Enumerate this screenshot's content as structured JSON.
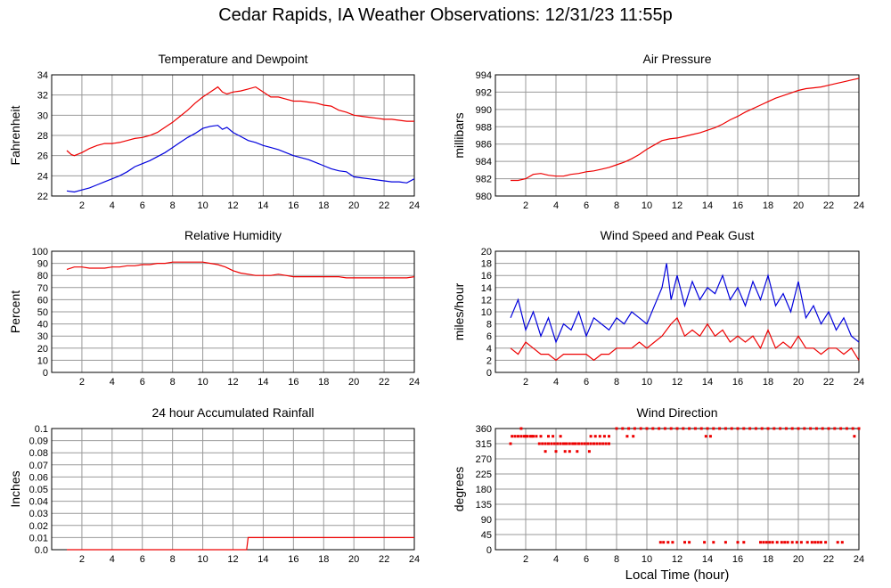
{
  "page": {
    "title": "Cedar Rapids, IA Weather Observations: 12/31/23 11:55p",
    "xlabel": "Local Time (hour)"
  },
  "colors": {
    "red": "#ee0000",
    "blue": "#0000dd",
    "grid": "#999999"
  },
  "chart_data": [
    {
      "id": "temp",
      "type": "line",
      "title": "Temperature and Dewpoint",
      "ylabel": "Fahrenheit",
      "xlim": [
        0,
        24
      ],
      "ylim": [
        22,
        34
      ],
      "xticks": [
        2,
        4,
        6,
        8,
        10,
        12,
        14,
        16,
        18,
        20,
        22,
        24
      ],
      "yticks": [
        22,
        24,
        26,
        28,
        30,
        32,
        34
      ],
      "grid": true,
      "series": [
        {
          "color": "red",
          "x": [
            1,
            1.3,
            1.5,
            2,
            2.5,
            3,
            3.5,
            4,
            4.5,
            5,
            5.5,
            6,
            6.5,
            7,
            7.5,
            8,
            8.5,
            9,
            9.5,
            10,
            10.5,
            11,
            11.3,
            11.6,
            12,
            12.5,
            13,
            13.5,
            14,
            14.5,
            15,
            15.5,
            16,
            16.5,
            17,
            17.5,
            18,
            18.5,
            19,
            19.5,
            20,
            20.5,
            21,
            21.5,
            22,
            22.5,
            23,
            23.5,
            24
          ],
          "y": [
            26.5,
            26.1,
            26.0,
            26.3,
            26.7,
            27.0,
            27.2,
            27.2,
            27.3,
            27.5,
            27.7,
            27.8,
            28.0,
            28.3,
            28.8,
            29.3,
            29.9,
            30.5,
            31.2,
            31.8,
            32.3,
            32.8,
            32.3,
            32.1,
            32.3,
            32.4,
            32.6,
            32.8,
            32.3,
            31.8,
            31.8,
            31.6,
            31.4,
            31.4,
            31.3,
            31.2,
            31.0,
            30.9,
            30.5,
            30.3,
            30.0,
            29.9,
            29.8,
            29.7,
            29.6,
            29.6,
            29.5,
            29.4,
            29.4
          ]
        },
        {
          "color": "blue",
          "x": [
            1,
            1.5,
            2,
            2.5,
            3,
            3.5,
            4,
            4.5,
            5,
            5.5,
            6,
            6.5,
            7,
            7.5,
            8,
            8.5,
            9,
            9.5,
            10,
            10.5,
            11,
            11.3,
            11.6,
            12,
            12.5,
            13,
            13.5,
            14,
            14.5,
            15,
            15.5,
            16,
            16.5,
            17,
            17.5,
            18,
            18.5,
            19,
            19.5,
            20,
            20.5,
            21,
            21.5,
            22,
            22.5,
            23,
            23.5,
            24
          ],
          "y": [
            22.5,
            22.4,
            22.6,
            22.8,
            23.1,
            23.4,
            23.7,
            24.0,
            24.4,
            24.9,
            25.2,
            25.5,
            25.9,
            26.3,
            26.8,
            27.3,
            27.8,
            28.2,
            28.7,
            28.9,
            29.0,
            28.6,
            28.8,
            28.3,
            27.9,
            27.5,
            27.3,
            27.0,
            26.8,
            26.6,
            26.3,
            26.0,
            25.8,
            25.6,
            25.3,
            25.0,
            24.7,
            24.5,
            24.4,
            23.9,
            23.8,
            23.7,
            23.6,
            23.5,
            23.4,
            23.4,
            23.3,
            23.7
          ]
        }
      ]
    },
    {
      "id": "pressure",
      "type": "line",
      "title": "Air Pressure",
      "ylabel": "millibars",
      "xlim": [
        0,
        24
      ],
      "ylim": [
        980,
        994
      ],
      "xticks": [
        2,
        4,
        6,
        8,
        10,
        12,
        14,
        16,
        18,
        20,
        22,
        24
      ],
      "yticks": [
        980,
        982,
        984,
        986,
        988,
        990,
        992,
        994
      ],
      "grid": true,
      "series": [
        {
          "color": "red",
          "x": [
            1,
            1.5,
            2,
            2.5,
            3,
            3.5,
            4,
            4.5,
            5,
            5.5,
            6,
            6.5,
            7,
            7.5,
            8,
            8.5,
            9,
            9.5,
            10,
            10.5,
            11,
            11.5,
            12,
            12.5,
            13,
            13.5,
            14,
            14.5,
            15,
            15.5,
            16,
            16.5,
            17,
            17.5,
            18,
            18.5,
            19,
            19.5,
            20,
            20.5,
            21,
            21.5,
            22,
            22.5,
            23,
            23.5,
            24
          ],
          "y": [
            981.8,
            981.8,
            982.0,
            982.5,
            982.6,
            982.4,
            982.3,
            982.3,
            982.5,
            982.6,
            982.8,
            982.9,
            983.1,
            983.3,
            983.6,
            983.9,
            984.3,
            984.8,
            985.4,
            985.9,
            986.4,
            986.6,
            986.7,
            986.9,
            987.1,
            987.3,
            987.6,
            987.9,
            988.3,
            988.8,
            989.2,
            989.7,
            990.1,
            990.5,
            990.9,
            991.3,
            991.6,
            991.9,
            992.2,
            992.4,
            992.5,
            992.6,
            992.8,
            993.0,
            993.2,
            993.4,
            993.6
          ]
        }
      ]
    },
    {
      "id": "humidity",
      "type": "line",
      "title": "Relative Humidity",
      "ylabel": "Percent",
      "xlim": [
        0,
        24
      ],
      "ylim": [
        0,
        100
      ],
      "xticks": [
        2,
        4,
        6,
        8,
        10,
        12,
        14,
        16,
        18,
        20,
        22,
        24
      ],
      "yticks": [
        0,
        10,
        20,
        30,
        40,
        50,
        60,
        70,
        80,
        90,
        100
      ],
      "grid": true,
      "series": [
        {
          "color": "red",
          "x": [
            1,
            1.5,
            2,
            2.5,
            3,
            3.5,
            4,
            4.5,
            5,
            5.5,
            6,
            6.5,
            7,
            7.5,
            8,
            8.5,
            9,
            9.5,
            10,
            10.5,
            11,
            11.5,
            12,
            12.5,
            13,
            13.5,
            14,
            14.5,
            15,
            15.5,
            16,
            16.5,
            17,
            17.5,
            18,
            18.5,
            19,
            19.5,
            20,
            20.5,
            21,
            21.5,
            22,
            22.5,
            23,
            23.5,
            24
          ],
          "y": [
            85,
            87,
            87,
            86,
            86,
            86,
            87,
            87,
            88,
            88,
            89,
            89,
            90,
            90,
            91,
            91,
            91,
            91,
            91,
            90,
            89,
            87,
            84,
            82,
            81,
            80,
            80,
            80,
            81,
            80,
            79,
            79,
            79,
            79,
            79,
            79,
            79,
            78,
            78,
            78,
            78,
            78,
            78,
            78,
            78,
            78,
            79
          ]
        }
      ]
    },
    {
      "id": "wind",
      "type": "line",
      "title": "Wind Speed and Peak Gust",
      "ylabel": "miles/hour",
      "xlim": [
        0,
        24
      ],
      "ylim": [
        0,
        20
      ],
      "xticks": [
        2,
        4,
        6,
        8,
        10,
        12,
        14,
        16,
        18,
        20,
        22,
        24
      ],
      "yticks": [
        0,
        2,
        4,
        6,
        8,
        10,
        12,
        14,
        16,
        18,
        20
      ],
      "grid": true,
      "series": [
        {
          "color": "blue",
          "x": [
            1,
            1.5,
            2,
            2.5,
            3,
            3.5,
            4,
            4.5,
            5,
            5.5,
            6,
            6.5,
            7,
            7.5,
            8,
            8.5,
            9,
            9.5,
            10,
            10.5,
            11,
            11.3,
            11.6,
            12,
            12.5,
            13,
            13.5,
            14,
            14.5,
            15,
            15.5,
            16,
            16.5,
            17,
            17.5,
            18,
            18.5,
            19,
            19.5,
            20,
            20.5,
            21,
            21.5,
            22,
            22.5,
            23,
            23.5,
            24
          ],
          "y": [
            9,
            12,
            7,
            10,
            6,
            9,
            5,
            8,
            7,
            10,
            6,
            9,
            8,
            7,
            9,
            8,
            10,
            9,
            8,
            11,
            14,
            18,
            12,
            16,
            11,
            15,
            12,
            14,
            13,
            16,
            12,
            14,
            11,
            15,
            12,
            16,
            11,
            13,
            10,
            15,
            9,
            11,
            8,
            10,
            7,
            9,
            6,
            5
          ]
        },
        {
          "color": "red",
          "x": [
            1,
            1.5,
            2,
            2.5,
            3,
            3.5,
            4,
            4.5,
            5,
            5.5,
            6,
            6.5,
            7,
            7.5,
            8,
            8.5,
            9,
            9.5,
            10,
            10.5,
            11,
            11.3,
            11.6,
            12,
            12.5,
            13,
            13.5,
            14,
            14.5,
            15,
            15.5,
            16,
            16.5,
            17,
            17.5,
            18,
            18.5,
            19,
            19.5,
            20,
            20.5,
            21,
            21.5,
            22,
            22.5,
            23,
            23.5,
            24
          ],
          "y": [
            4,
            3,
            5,
            4,
            3,
            3,
            2,
            3,
            3,
            3,
            3,
            2,
            3,
            3,
            4,
            4,
            4,
            5,
            4,
            5,
            6,
            7,
            8,
            9,
            6,
            7,
            6,
            8,
            6,
            7,
            5,
            6,
            5,
            6,
            4,
            7,
            4,
            5,
            4,
            6,
            4,
            4,
            3,
            4,
            4,
            3,
            4,
            2
          ]
        }
      ]
    },
    {
      "id": "rain",
      "type": "line",
      "title": "24 hour Accumulated Rainfall",
      "ylabel": "Inches",
      "xlim": [
        0,
        24
      ],
      "ylim": [
        0,
        0.1
      ],
      "xticks": [
        2,
        4,
        6,
        8,
        10,
        12,
        14,
        16,
        18,
        20,
        22,
        24
      ],
      "yticks": [
        0,
        0.01,
        0.02,
        0.03,
        0.04,
        0.05,
        0.06,
        0.07,
        0.08,
        0.09,
        0.1
      ],
      "yticklabels": [
        "0.0",
        "0.01",
        "0.02",
        "0.03",
        "0.04",
        "0.05",
        "0.06",
        "0.07",
        "0.08",
        "0.09",
        "0.1"
      ],
      "grid": true,
      "series": [
        {
          "color": "red",
          "x": [
            1,
            12.9,
            13.0,
            24
          ],
          "y": [
            0,
            0,
            0.01,
            0.01
          ]
        }
      ]
    },
    {
      "id": "direction",
      "type": "scatter",
      "title": "Wind Direction",
      "ylabel": "degrees",
      "xlim": [
        0,
        24
      ],
      "ylim": [
        0,
        360
      ],
      "xticks": [
        2,
        4,
        6,
        8,
        10,
        12,
        14,
        16,
        18,
        20,
        22,
        24
      ],
      "yticks": [
        0,
        45,
        90,
        135,
        180,
        225,
        270,
        315,
        360
      ],
      "grid": true,
      "series": [
        {
          "color": "red",
          "mode": "points",
          "x": [
            1,
            1.1,
            1.3,
            1.5,
            1.7,
            1.9,
            2.1,
            2.3,
            2.5,
            2.7,
            2.9,
            3.1,
            3.3,
            3.5,
            3.7,
            3.9,
            4.1,
            4.3,
            4.5,
            4.7,
            4.9,
            5.1,
            5.3,
            5.5,
            5.7,
            5.9,
            6.1,
            6.3,
            6.5,
            6.7,
            6.9,
            7.1,
            7.3,
            7.5,
            1.7,
            2.0,
            2.4,
            3.0,
            3.5,
            3.8,
            4.3,
            4.6,
            5.2,
            5.7,
            6.3,
            6.6,
            6.9,
            7.2,
            7.5,
            8.0,
            8.4,
            8.8,
            9.2,
            9.6,
            10,
            10.4,
            10.8,
            11.2,
            11.6,
            12,
            12.4,
            12.8,
            13.2,
            13.6,
            14,
            14.4,
            14.8,
            15.2,
            15.6,
            16,
            16.4,
            16.8,
            17.2,
            17.6,
            18,
            18.4,
            18.8,
            19.2,
            19.6,
            20,
            20.4,
            20.8,
            21.2,
            21.6,
            22,
            22.4,
            22.8,
            23.2,
            23.6,
            24,
            8.7,
            9.1,
            13.9,
            14.2,
            23.7,
            3.3,
            4.0,
            4.6,
            4.9,
            5.4,
            6.2,
            10.9,
            11.1,
            11.4,
            11.7,
            12.5,
            12.8,
            13.8,
            14.4,
            15.2,
            16,
            16.4,
            17.5,
            17.7,
            17.9,
            18.1,
            18.3,
            18.6,
            18.9,
            19.1,
            19.3,
            19.6,
            19.9,
            20.2,
            20.6,
            20.9,
            21.1,
            21.3,
            21.5,
            21.8,
            22.6,
            22.9
          ],
          "y": [
            315,
            337,
            337,
            337,
            337,
            337,
            337,
            337,
            337,
            337,
            315,
            315,
            315,
            315,
            315,
            315,
            315,
            315,
            315,
            315,
            315,
            315,
            315,
            315,
            315,
            315,
            315,
            315,
            315,
            315,
            315,
            315,
            315,
            315,
            360,
            337,
            337,
            337,
            337,
            337,
            337,
            315,
            315,
            315,
            337,
            337,
            337,
            337,
            337,
            360,
            360,
            360,
            360,
            360,
            360,
            360,
            360,
            360,
            360,
            360,
            360,
            360,
            360,
            360,
            360,
            360,
            360,
            360,
            360,
            360,
            360,
            360,
            360,
            360,
            360,
            360,
            360,
            360,
            360,
            360,
            360,
            360,
            360,
            360,
            360,
            360,
            360,
            360,
            360,
            360,
            337,
            337,
            337,
            337,
            337,
            292,
            292,
            292,
            292,
            292,
            292,
            22,
            22,
            22,
            22,
            22,
            22,
            22,
            22,
            22,
            22,
            22,
            22,
            22,
            22,
            22,
            22,
            22,
            22,
            22,
            22,
            22,
            22,
            22,
            22,
            22,
            22,
            22,
            22,
            22,
            22,
            22
          ]
        }
      ]
    }
  ]
}
